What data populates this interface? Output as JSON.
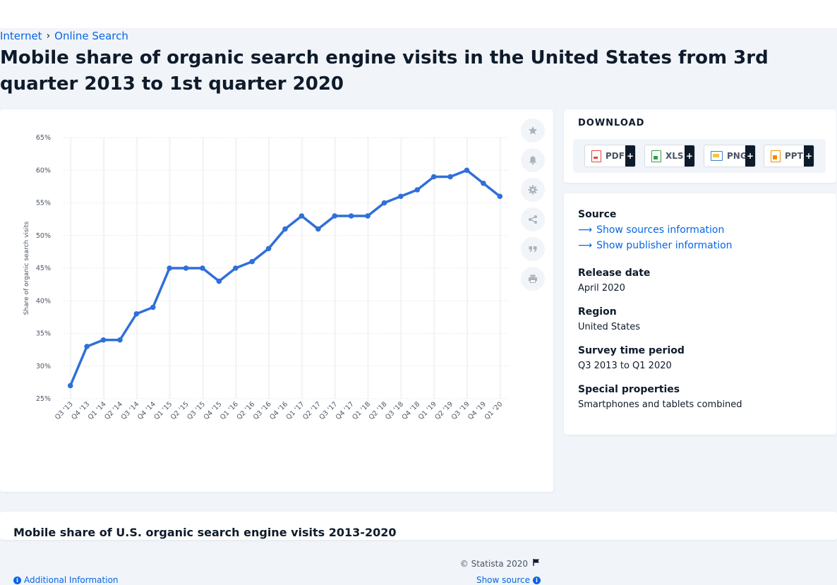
{
  "breadcrumb": {
    "parent": "Internet",
    "current": "Online Search"
  },
  "title": "Mobile share of organic search engine visits in the United States from 3rd quarter 2013 to 1st quarter 2020",
  "colors": {
    "accent": "#0666e5",
    "line": "#2f6fd9",
    "text": "#0e1b2b",
    "muted": "#4a5564",
    "band": "#f3f4f6"
  },
  "chart_data": {
    "type": "line",
    "title": "",
    "xlabel": "",
    "ylabel": "Share of organic search visits",
    "ylim": [
      25,
      65
    ],
    "yticks": [
      "25%",
      "30%",
      "35%",
      "40%",
      "45%",
      "50%",
      "55%",
      "60%",
      "65%"
    ],
    "ytick_values": [
      25,
      30,
      35,
      40,
      45,
      50,
      55,
      60,
      65
    ],
    "grid": true,
    "categories": [
      "Q3 '13",
      "Q4 '13",
      "Q1 '14",
      "Q2 '14",
      "Q3 '14",
      "Q4 '14",
      "Q1 '15",
      "Q2 '15",
      "Q3 '15",
      "Q4 '15",
      "Q1 '16",
      "Q2 '16",
      "Q3 '16",
      "Q4 '16",
      "Q1 '17",
      "Q2 '17",
      "Q3 '17",
      "Q4 '17",
      "Q1 '18",
      "Q2 '18",
      "Q3 '18",
      "Q4 '18",
      "Q1 '19",
      "Q2 '19",
      "Q3 '19",
      "Q4 '19",
      "Q1 '20"
    ],
    "values": [
      27,
      33,
      34,
      34,
      38,
      39,
      45,
      45,
      45,
      43,
      45,
      46,
      48,
      51,
      53,
      51,
      53,
      53,
      53,
      55,
      56,
      57,
      59,
      59,
      60,
      58,
      56
    ]
  },
  "chart_footer": {
    "copyright": "© Statista 2020",
    "additional_info": "Additional Information",
    "show_source": "Show source"
  },
  "download": {
    "title": "DOWNLOAD",
    "buttons": [
      {
        "label": "PDF",
        "color": "#e0443c"
      },
      {
        "label": "XLS",
        "color": "#2f9e44"
      },
      {
        "label": "PNG",
        "color": "#3b82c4"
      },
      {
        "label": "PPT",
        "color": "#f08c00"
      }
    ],
    "plus": "+"
  },
  "info": {
    "source_label": "Source",
    "show_sources": "Show sources information",
    "show_publisher": "Show publisher information",
    "release_label": "Release date",
    "release_value": "April 2020",
    "region_label": "Region",
    "region_value": "United States",
    "period_label": "Survey time period",
    "period_value": "Q3 2013 to Q1 2020",
    "special_label": "Special properties",
    "special_value": "Smartphones and tablets combined"
  },
  "bottom": {
    "title": "Mobile share of U.S. organic search engine visits 2013-2020"
  }
}
